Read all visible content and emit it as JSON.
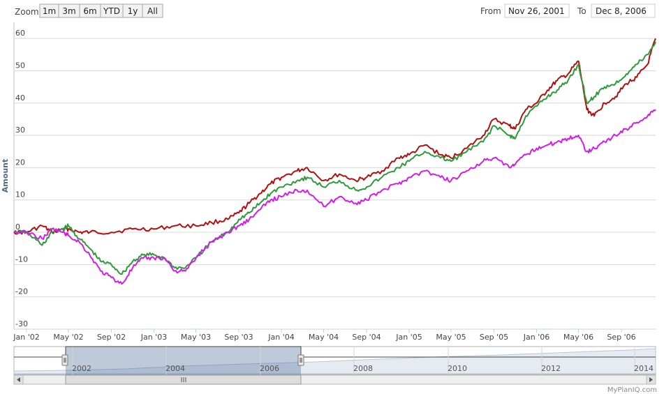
{
  "toolbar": {
    "zoom_label": "Zoom",
    "zoom_buttons": [
      "1m",
      "3m",
      "6m",
      "YTD",
      "1y",
      "All"
    ],
    "from_label": "From",
    "from_value": "Nov 26, 2001",
    "to_label": "To",
    "to_value": "Dec 8, 2006"
  },
  "credit": "MyPlanIQ.com",
  "navigator": {
    "year_labels": [
      "2002",
      "2004",
      "2006",
      "2008",
      "2010",
      "2012",
      "2014"
    ]
  },
  "chart_data": {
    "type": "line",
    "title": "",
    "ylabel": "Amount",
    "ylim": [
      -30,
      65
    ],
    "yticks": [
      -30,
      -20,
      -10,
      0,
      10,
      20,
      30,
      40,
      50,
      60
    ],
    "xtick_labels": [
      "Jan '02",
      "May '02",
      "Sep '02",
      "Jan '03",
      "May '03",
      "Sep '03",
      "Jan '04",
      "May '04",
      "Sep '04",
      "Jan '05",
      "May '05",
      "Sep '05",
      "Jan '06",
      "May '06",
      "Sep '06"
    ],
    "xtick_dates": [
      "2002-01-01",
      "2002-05-01",
      "2002-09-01",
      "2003-01-01",
      "2003-05-01",
      "2003-09-01",
      "2004-01-01",
      "2004-05-01",
      "2004-09-01",
      "2005-01-01",
      "2005-05-01",
      "2005-09-01",
      "2006-01-01",
      "2006-05-01",
      "2006-09-01"
    ],
    "xrange": [
      "2001-11-26",
      "2006-12-08"
    ],
    "series": [
      {
        "color": "#b01010",
        "x": [
          "2001-11-26",
          "2002-01-01",
          "2002-02-15",
          "2002-03-15",
          "2002-04-15",
          "2002-05-01",
          "2002-06-01",
          "2002-07-01",
          "2002-09-01",
          "2002-11-01",
          "2003-01-01",
          "2003-03-01",
          "2003-05-01",
          "2003-06-15",
          "2003-08-01",
          "2003-09-01",
          "2003-10-01",
          "2003-11-01",
          "2003-12-01",
          "2004-01-01",
          "2004-02-15",
          "2004-03-15",
          "2004-05-01",
          "2004-06-15",
          "2004-08-01",
          "2004-09-01",
          "2004-10-15",
          "2004-12-01",
          "2005-01-01",
          "2005-02-15",
          "2005-04-01",
          "2005-05-01",
          "2005-06-15",
          "2005-08-01",
          "2005-09-01",
          "2005-10-15",
          "2005-11-01",
          "2005-12-01",
          "2006-01-01",
          "2006-02-01",
          "2006-03-01",
          "2006-04-01",
          "2006-05-01",
          "2006-05-25",
          "2006-06-15",
          "2006-07-15",
          "2006-08-15",
          "2006-09-15",
          "2006-10-15",
          "2006-11-15",
          "2006-12-08"
        ],
        "y": [
          0,
          0,
          2,
          0,
          1,
          1,
          0,
          0,
          0,
          1,
          1,
          2,
          2,
          3,
          4,
          6,
          9,
          12,
          15,
          17,
          19,
          20,
          16,
          18,
          16,
          17,
          19,
          23,
          24,
          27,
          24,
          23,
          26,
          30,
          35,
          33,
          32,
          38,
          40,
          44,
          47,
          49,
          53,
          38,
          36,
          40,
          42,
          46,
          48,
          52,
          60
        ]
      },
      {
        "color": "#2e9a3c",
        "x": [
          "2001-11-26",
          "2002-01-01",
          "2002-02-15",
          "2002-03-15",
          "2002-04-15",
          "2002-05-01",
          "2002-06-01",
          "2002-07-01",
          "2002-08-01",
          "2002-09-01",
          "2002-10-01",
          "2002-11-01",
          "2002-12-01",
          "2003-01-01",
          "2003-02-01",
          "2003-03-01",
          "2003-04-01",
          "2003-05-01",
          "2003-06-15",
          "2003-08-01",
          "2003-09-01",
          "2003-10-01",
          "2003-11-01",
          "2003-12-01",
          "2004-01-01",
          "2004-02-15",
          "2004-03-15",
          "2004-05-01",
          "2004-06-15",
          "2004-08-01",
          "2004-09-01",
          "2004-10-15",
          "2004-12-01",
          "2005-01-01",
          "2005-02-15",
          "2005-04-01",
          "2005-05-01",
          "2005-06-15",
          "2005-08-01",
          "2005-09-01",
          "2005-10-15",
          "2005-11-01",
          "2005-12-01",
          "2006-01-01",
          "2006-02-01",
          "2006-03-01",
          "2006-04-01",
          "2006-05-01",
          "2006-05-25",
          "2006-06-15",
          "2006-07-15",
          "2006-08-15",
          "2006-09-15",
          "2006-10-15",
          "2006-11-15",
          "2006-12-08"
        ],
        "y": [
          0,
          0,
          -4,
          0,
          1,
          2,
          -2,
          -5,
          -9,
          -10,
          -13,
          -9,
          -7,
          -7,
          -8,
          -11,
          -11,
          -8,
          -3,
          0,
          4,
          6,
          9,
          12,
          14,
          16,
          17,
          14,
          16,
          13,
          14,
          17,
          20,
          22,
          25,
          23,
          22,
          25,
          28,
          33,
          30,
          29,
          36,
          39,
          42,
          44,
          47,
          52,
          40,
          42,
          45,
          46,
          49,
          52,
          55,
          59
        ]
      },
      {
        "color": "#d11ee6",
        "x": [
          "2001-11-26",
          "2002-01-01",
          "2002-02-15",
          "2002-03-15",
          "2002-04-15",
          "2002-05-01",
          "2002-06-01",
          "2002-07-01",
          "2002-08-01",
          "2002-09-01",
          "2002-10-01",
          "2002-11-01",
          "2002-12-01",
          "2003-01-01",
          "2003-02-01",
          "2003-03-01",
          "2003-04-01",
          "2003-05-01",
          "2003-06-15",
          "2003-08-01",
          "2003-09-01",
          "2003-10-01",
          "2003-11-01",
          "2003-12-01",
          "2004-01-01",
          "2004-02-15",
          "2004-03-15",
          "2004-05-01",
          "2004-06-15",
          "2004-08-01",
          "2004-09-01",
          "2004-10-15",
          "2004-12-01",
          "2005-01-01",
          "2005-02-15",
          "2005-04-01",
          "2005-05-01",
          "2005-06-15",
          "2005-08-01",
          "2005-09-01",
          "2005-10-15",
          "2005-11-01",
          "2005-12-01",
          "2006-01-01",
          "2006-02-01",
          "2006-03-01",
          "2006-04-01",
          "2006-05-01",
          "2006-05-25",
          "2006-06-15",
          "2006-07-15",
          "2006-08-15",
          "2006-09-15",
          "2006-10-15",
          "2006-11-15",
          "2006-12-08"
        ],
        "y": [
          0,
          0,
          -2,
          1,
          0,
          -1,
          -3,
          -7,
          -12,
          -14,
          -16,
          -11,
          -8,
          -8,
          -8,
          -12,
          -12,
          -8,
          -3,
          0,
          2,
          4,
          7,
          10,
          11,
          13,
          13,
          8,
          11,
          9,
          10,
          13,
          15,
          17,
          19,
          17,
          16,
          19,
          22,
          23,
          20,
          21,
          24,
          26,
          27,
          28,
          29,
          30,
          25,
          26,
          28,
          30,
          32,
          34,
          36,
          38
        ]
      }
    ]
  }
}
